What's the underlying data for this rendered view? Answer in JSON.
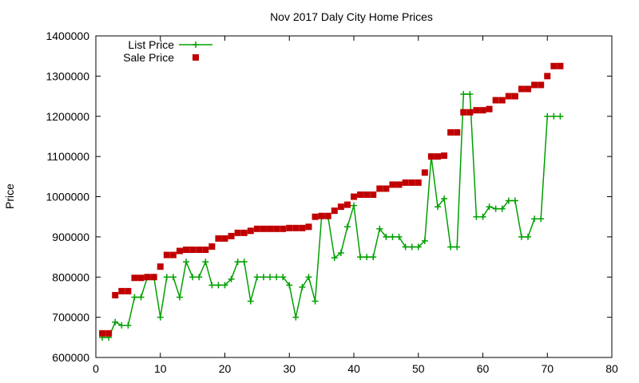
{
  "chart_data": {
    "type": "line",
    "title": "Nov 2017 Daly City Home Prices",
    "xlabel": "",
    "ylabel": "Price",
    "xlim": [
      0,
      80
    ],
    "ylim": [
      600000,
      1400000
    ],
    "xticks": [
      0,
      10,
      20,
      30,
      40,
      50,
      60,
      70,
      80
    ],
    "yticks": [
      600000,
      700000,
      800000,
      900000,
      1000000,
      1100000,
      1200000,
      1300000,
      1400000
    ],
    "grid": false,
    "legend_position": "top-left",
    "series": [
      {
        "name": "List Price",
        "style": "line-with-plus-markers",
        "color": "#00a000",
        "x": [
          1,
          2,
          3,
          4,
          5,
          6,
          7,
          8,
          9,
          10,
          11,
          12,
          13,
          14,
          15,
          16,
          17,
          18,
          19,
          20,
          21,
          22,
          23,
          24,
          25,
          26,
          27,
          28,
          29,
          30,
          31,
          32,
          33,
          34,
          35,
          36,
          37,
          38,
          39,
          40,
          41,
          42,
          43,
          44,
          45,
          46,
          47,
          48,
          49,
          50,
          51,
          52,
          53,
          54,
          55,
          56,
          57,
          58,
          59,
          60,
          61,
          62,
          63,
          64,
          65,
          66,
          67,
          68,
          69,
          70,
          71,
          72
        ],
        "values": [
          650000,
          650000,
          688000,
          680000,
          680000,
          750000,
          750000,
          800000,
          800000,
          700000,
          800000,
          800000,
          750000,
          838000,
          800000,
          800000,
          838000,
          780000,
          780000,
          780000,
          795000,
          838000,
          838000,
          740000,
          800000,
          800000,
          800000,
          800000,
          800000,
          780000,
          700000,
          775000,
          800000,
          740000,
          950000,
          950000,
          848000,
          860000,
          925000,
          978000,
          850000,
          850000,
          850000,
          920000,
          900000,
          900000,
          900000,
          875000,
          875000,
          875000,
          890000,
          1100000,
          975000,
          995000,
          875000,
          875000,
          1255000,
          1255000,
          950000,
          950000,
          975000,
          970000,
          970000,
          990000,
          990000,
          900000,
          900000,
          945000,
          945000,
          1200000,
          1200000,
          1200000
        ]
      },
      {
        "name": "Sale Price",
        "style": "square-points",
        "color": "#c00000",
        "x": [
          1,
          2,
          3,
          4,
          5,
          6,
          7,
          8,
          9,
          10,
          11,
          12,
          13,
          14,
          15,
          16,
          17,
          18,
          19,
          20,
          21,
          22,
          23,
          24,
          25,
          26,
          27,
          28,
          29,
          30,
          31,
          32,
          33,
          34,
          35,
          36,
          37,
          38,
          39,
          40,
          41,
          42,
          43,
          44,
          45,
          46,
          47,
          48,
          49,
          50,
          51,
          52,
          53,
          54,
          55,
          56,
          57,
          58,
          59,
          60,
          61,
          62,
          63,
          64,
          65,
          66,
          67,
          68,
          69,
          70,
          71,
          72
        ],
        "values": [
          660000,
          660000,
          755000,
          765000,
          765000,
          798000,
          798000,
          800000,
          800000,
          826000,
          855000,
          855000,
          865000,
          868000,
          868000,
          868000,
          868000,
          876000,
          896000,
          896000,
          902000,
          910000,
          910000,
          915000,
          920000,
          920000,
          920000,
          920000,
          920000,
          922000,
          922000,
          922000,
          925000,
          950000,
          952000,
          952000,
          965000,
          975000,
          980000,
          1000000,
          1005000,
          1005000,
          1005000,
          1020000,
          1020000,
          1030000,
          1030000,
          1035000,
          1035000,
          1035000,
          1060000,
          1100000,
          1100000,
          1102000,
          1160000,
          1160000,
          1210000,
          1210000,
          1215000,
          1215000,
          1218000,
          1240000,
          1240000,
          1250000,
          1250000,
          1268000,
          1268000,
          1278000,
          1278000,
          1300000,
          1325000,
          1325000
        ]
      }
    ]
  }
}
